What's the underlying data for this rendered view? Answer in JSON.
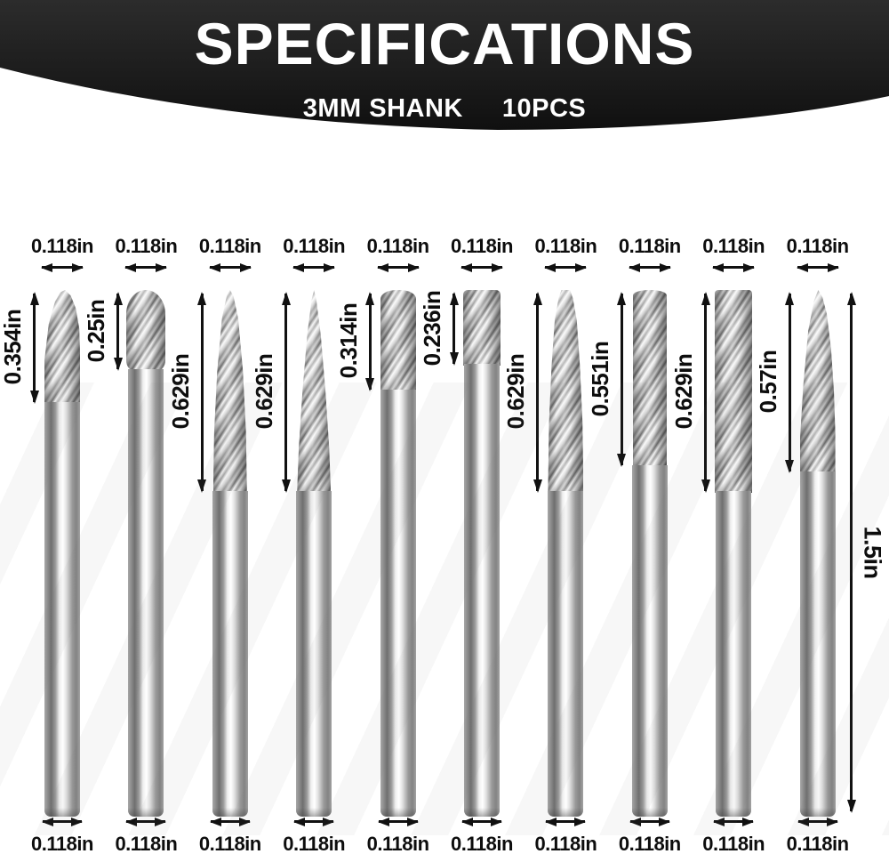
{
  "header": {
    "title": "SPECIFICATIONS",
    "subtitle_left": "3MM SHANK",
    "subtitle_right": "10PCS",
    "banner_top_color": "#2c2c2c",
    "banner_bottom_color": "#101010",
    "text_color": "#ffffff"
  },
  "bits": [
    {
      "index": 1,
      "top_diameter": "0.118in",
      "head_length": "0.354in",
      "head_length_in": 0.354,
      "shank_diameter": "0.118in",
      "shape": "taper-pointed"
    },
    {
      "index": 2,
      "top_diameter": "0.118in",
      "head_length": "0.25in",
      "head_length_in": 0.25,
      "shank_diameter": "0.118in",
      "shape": "ball-nose"
    },
    {
      "index": 3,
      "top_diameter": "0.118in",
      "head_length": "0.629in",
      "head_length_in": 0.629,
      "shank_diameter": "0.118in",
      "shape": "cone-long"
    },
    {
      "index": 4,
      "top_diameter": "0.118in",
      "head_length": "0.629in",
      "head_length_in": 0.629,
      "shank_diameter": "0.118in",
      "shape": "cone-sharp"
    },
    {
      "index": 5,
      "top_diameter": "0.118in",
      "head_length": "0.314in",
      "head_length_in": 0.314,
      "shank_diameter": "0.118in",
      "shape": "cylinder-round"
    },
    {
      "index": 6,
      "top_diameter": "0.118in",
      "head_length": "0.236in",
      "head_length_in": 0.236,
      "shank_diameter": "0.118in",
      "shape": "cylinder-flat"
    },
    {
      "index": 7,
      "top_diameter": "0.118in",
      "head_length": "0.629in",
      "head_length_in": 0.629,
      "shank_diameter": "0.118in",
      "shape": "taper-round-long"
    },
    {
      "index": 8,
      "top_diameter": "0.118in",
      "head_length": "0.551in",
      "head_length_in": 0.551,
      "shank_diameter": "0.118in",
      "shape": "cylinder-round-long"
    },
    {
      "index": 9,
      "top_diameter": "0.118in",
      "head_length": "0.629in",
      "head_length_in": 0.629,
      "shank_diameter": "0.118in",
      "shape": "cylinder-flat-long"
    },
    {
      "index": 10,
      "top_diameter": "0.118in",
      "head_length": "0.57in",
      "head_length_in": 0.57,
      "shank_diameter": "0.118in",
      "shape": "taper-pointed-long"
    }
  ],
  "overall": {
    "total_length": "1.5in",
    "total_length_in": 1.5
  },
  "colors": {
    "dimension_text": "#0d0d0d",
    "arrow": "#111111",
    "metal_light": "#f5f5f5",
    "metal_mid": "#9a9a9a",
    "metal_dark": "#6e6e6e"
  }
}
